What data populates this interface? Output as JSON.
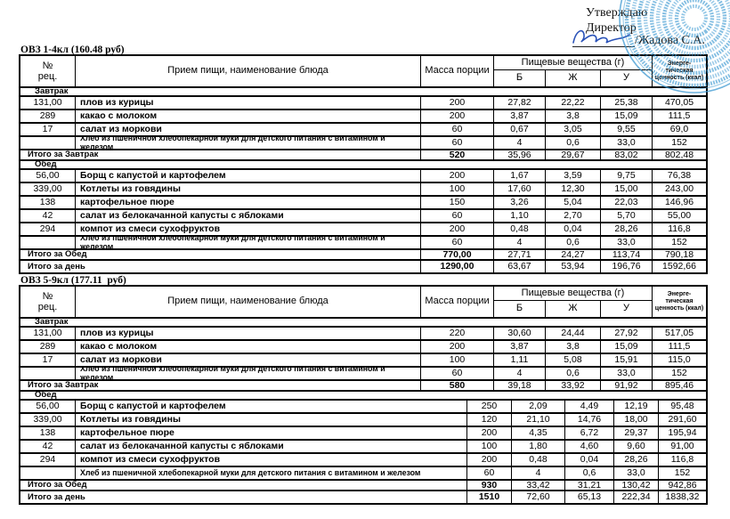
{
  "approval": {
    "approve_label": "Утверждаю",
    "position_label": "Директор",
    "signatory": "/Жадова С.А."
  },
  "signature": {
    "color": "#2a52b8"
  },
  "stamp": {
    "shape": "round-seal",
    "color": "#3f9ad2"
  },
  "tables": [
    {
      "title": "ОВЗ 1-4кл (160.48 руб)",
      "columns": {
        "no": "№\nрец.",
        "meal": "Прием пищи, наименование блюда",
        "mass": "Масса порции",
        "nutrients": "Пищевые вещества (г)",
        "protein": "Б",
        "fat": "Ж",
        "carbs": "У",
        "energy": "Энерге-\nтическая\nценность (ккал)"
      },
      "sections": [
        {
          "name": "Завтрак",
          "rows": [
            {
              "no": "131,00",
              "name": "плов из курицы",
              "mass": "200",
              "protein": "27,82",
              "fat": "22,22",
              "carbs": "25,38",
              "energy": "470,05"
            },
            {
              "no": "289",
              "name": "какао с молоком",
              "mass": "200",
              "protein": "3,87",
              "fat": "3,8",
              "carbs": "15,09",
              "energy": "111,5"
            },
            {
              "no": "17",
              "name": "салат из моркови",
              "mass": "60",
              "protein": "0,67",
              "fat": "3,05",
              "carbs": "9,55",
              "energy": "69,0"
            },
            {
              "no": "",
              "name": "Хлеб из пшеничной хлебопекарной муки для детского питания с витамином и железом",
              "mass": "60",
              "protein": "4",
              "fat": "0,6",
              "carbs": "33,0",
              "energy": "152"
            }
          ],
          "total": {
            "label": "Итого за Завтрак",
            "mass": "520",
            "protein": "35,96",
            "fat": "29,67",
            "carbs": "83,02",
            "energy": "802,48"
          }
        },
        {
          "name": "Обед",
          "rows": [
            {
              "no": "56,00",
              "name": "Борщ с капустой и картофелем",
              "mass": "200",
              "protein": "1,67",
              "fat": "3,59",
              "carbs": "9,75",
              "energy": "76,38"
            },
            {
              "no": "339,00",
              "name": "Котлеты из говядины",
              "mass": "100",
              "protein": "17,60",
              "fat": "12,30",
              "carbs": "15,00",
              "energy": "243,00"
            },
            {
              "no": "138",
              "name": "картофельное пюре",
              "mass": "150",
              "protein": "3,26",
              "fat": "5,04",
              "carbs": "22,03",
              "energy": "146,96"
            },
            {
              "no": "42",
              "name": "салат из белокачанной капусты с яблоками",
              "mass": "60",
              "protein": "1,10",
              "fat": "2,70",
              "carbs": "5,70",
              "energy": "55,00"
            },
            {
              "no": "294",
              "name": "компот из смеси сухофруктов",
              "mass": "200",
              "protein": "0,48",
              "fat": "0,04",
              "carbs": "28,26",
              "energy": "116,8"
            },
            {
              "no": "",
              "name": "Хлеб из пшеничной хлебопекарной муки для детского питания с витамином и железом",
              "mass": "60",
              "protein": "4",
              "fat": "0,6",
              "carbs": "33,0",
              "energy": "152"
            }
          ],
          "total": {
            "label": "Итого за Обед",
            "mass": "770,00",
            "protein": "27,71",
            "fat": "24,27",
            "carbs": "113,74",
            "energy": "790,18"
          }
        }
      ],
      "day_total": {
        "label": "Итого за день",
        "mass": "1290,00",
        "protein": "63,67",
        "fat": "53,94",
        "carbs": "196,76",
        "energy": "1592,66"
      }
    },
    {
      "title": "ОВЗ 5-9кл (177.11  руб)",
      "columns": {
        "no": "№\nрец.",
        "meal": "Прием пищи, наименование блюда",
        "mass": "Масса порции",
        "nutrients": "Пищевые вещества (г)",
        "protein": "Б",
        "fat": "Ж",
        "carbs": "У",
        "energy": "Энерге-\nтическая\nценность (ккал)"
      },
      "sections": [
        {
          "name": "Завтрак",
          "rows": [
            {
              "no": "131,00",
              "name": "плов из курицы",
              "mass": "220",
              "protein": "30,60",
              "fat": "24,44",
              "carbs": "27,92",
              "energy": "517,05"
            },
            {
              "no": "289",
              "name": "какао с молоком",
              "mass": "200",
              "protein": "3,87",
              "fat": "3,8",
              "carbs": "15,09",
              "energy": "111,5"
            },
            {
              "no": "17",
              "name": "салат из моркови",
              "mass": "100",
              "protein": "1,11",
              "fat": "5,08",
              "carbs": "15,91",
              "energy": "115,0"
            },
            {
              "no": "",
              "name": "Хлеб из пшеничной хлебопекарной муки для детского питания с витамином и железом",
              "mass": "60",
              "protein": "4",
              "fat": "0,6",
              "carbs": "33,0",
              "energy": "152"
            }
          ],
          "total": {
            "label": "Итого за Завтрак",
            "mass": "580",
            "protein": "39,18",
            "fat": "33,92",
            "carbs": "91,92",
            "energy": "895,46"
          }
        },
        {
          "name": "Обед",
          "rows": [
            {
              "no": "56,00",
              "name": "Борщ с капустой и картофелем",
              "mass": "250",
              "protein": "2,09",
              "fat": "4,49",
              "carbs": "12,19",
              "energy": "95,48"
            },
            {
              "no": "339,00",
              "name": "Котлеты из говядины",
              "mass": "120",
              "protein": "21,10",
              "fat": "14,76",
              "carbs": "18,00",
              "energy": "291,60"
            },
            {
              "no": "138",
              "name": "картофельное пюре",
              "mass": "200",
              "protein": "4,35",
              "fat": "6,72",
              "carbs": "29,37",
              "energy": "195,94"
            },
            {
              "no": "42",
              "name": "салат из белокачанной капусты с яблоками",
              "mass": "100",
              "protein": "1,80",
              "fat": "4,60",
              "carbs": "9,60",
              "energy": "91,00"
            },
            {
              "no": "294",
              "name": "компот из смеси сухофруктов",
              "mass": "200",
              "protein": "0,48",
              "fat": "0,04",
              "carbs": "28,26",
              "energy": "116,8"
            },
            {
              "no": "",
              "name": "Хлеб из пшеничной хлебопекарной муки для детского питания с витамином и железом",
              "mass": "60",
              "protein": "4",
              "fat": "0,6",
              "carbs": "33,0",
              "energy": "152"
            }
          ],
          "total": {
            "label": "Итого за Обед",
            "mass": "930",
            "protein": "33,42",
            "fat": "31,21",
            "carbs": "130,42",
            "energy": "942,86"
          }
        }
      ],
      "day_total": {
        "label": "Итого за день",
        "mass": "1510",
        "protein": "72,60",
        "fat": "65,13",
        "carbs": "222,34",
        "energy": "1838,32"
      }
    }
  ]
}
